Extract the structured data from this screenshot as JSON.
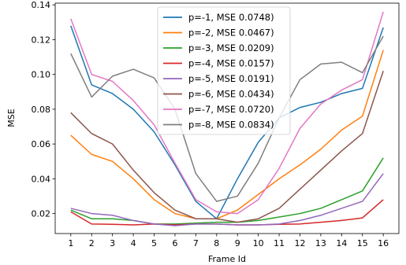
{
  "chart_data": {
    "type": "line",
    "xlabel": "Frame Id",
    "ylabel": "MSE",
    "xlim": [
      0.25,
      16.75
    ],
    "ylim": [
      0.0085,
      0.141
    ],
    "x": [
      1,
      2,
      3,
      4,
      5,
      6,
      7,
      8,
      9,
      10,
      11,
      12,
      13,
      14,
      15,
      16
    ],
    "x_ticks": [
      "1",
      "2",
      "3",
      "4",
      "5",
      "6",
      "7",
      "8",
      "9",
      "10",
      "11",
      "12",
      "13",
      "14",
      "15",
      "16"
    ],
    "y_ticks": [
      {
        "value": 0.02,
        "label": "0.02"
      },
      {
        "value": 0.04,
        "label": "0.04"
      },
      {
        "value": 0.06,
        "label": "0.06"
      },
      {
        "value": 0.08,
        "label": "0.08"
      },
      {
        "value": 0.1,
        "label": "0.10"
      },
      {
        "value": 0.12,
        "label": "0.12"
      },
      {
        "value": 0.14,
        "label": "0.14"
      }
    ],
    "legend_position": "top-center",
    "grid": false,
    "series": [
      {
        "name": "p=-1, MSE 0.0748)",
        "color": "#1f77b4",
        "values": [
          0.128,
          0.094,
          0.089,
          0.08,
          0.067,
          0.048,
          0.027,
          0.017,
          0.04,
          0.061,
          0.075,
          0.081,
          0.084,
          0.089,
          0.092,
          0.127
        ]
      },
      {
        "name": "p=-2, MSE 0.0467)",
        "color": "#ff7f0e",
        "values": [
          0.065,
          0.054,
          0.05,
          0.04,
          0.028,
          0.02,
          0.017,
          0.017,
          0.022,
          0.031,
          0.04,
          0.048,
          0.057,
          0.068,
          0.076,
          0.114
        ]
      },
      {
        "name": "p=-3, MSE 0.0209)",
        "color": "#2ca02c",
        "values": [
          0.022,
          0.017,
          0.017,
          0.016,
          0.014,
          0.014,
          0.0145,
          0.015,
          0.015,
          0.016,
          0.018,
          0.02,
          0.023,
          0.028,
          0.033,
          0.052
        ]
      },
      {
        "name": "p=-4, MSE 0.0157)",
        "color": "#d62728",
        "values": [
          0.021,
          0.014,
          0.0138,
          0.0135,
          0.014,
          0.0135,
          0.014,
          0.014,
          0.0135,
          0.0135,
          0.0138,
          0.014,
          0.015,
          0.016,
          0.0175,
          0.028
        ]
      },
      {
        "name": "p=-5, MSE 0.0191)",
        "color": "#9467bd",
        "values": [
          0.023,
          0.02,
          0.019,
          0.016,
          0.014,
          0.013,
          0.014,
          0.014,
          0.0135,
          0.0135,
          0.014,
          0.016,
          0.019,
          0.023,
          0.027,
          0.043
        ]
      },
      {
        "name": "p=-6, MSE 0.0434)",
        "color": "#8c564b",
        "values": [
          0.078,
          0.066,
          0.06,
          0.045,
          0.032,
          0.022,
          0.017,
          0.017,
          0.015,
          0.017,
          0.023,
          0.034,
          0.045,
          0.056,
          0.066,
          0.102
        ]
      },
      {
        "name": "p=-7, MSE 0.0720)",
        "color": "#e377c2",
        "values": [
          0.132,
          0.1,
          0.096,
          0.085,
          0.071,
          0.049,
          0.028,
          0.021,
          0.02,
          0.028,
          0.046,
          0.069,
          0.083,
          0.091,
          0.097,
          0.136
        ]
      },
      {
        "name": "p=-8, MSE 0.0834)",
        "color": "#7f7f7f",
        "values": [
          0.112,
          0.087,
          0.099,
          0.103,
          0.098,
          0.08,
          0.043,
          0.027,
          0.03,
          0.049,
          0.075,
          0.097,
          0.106,
          0.107,
          0.101,
          0.122
        ]
      }
    ]
  }
}
